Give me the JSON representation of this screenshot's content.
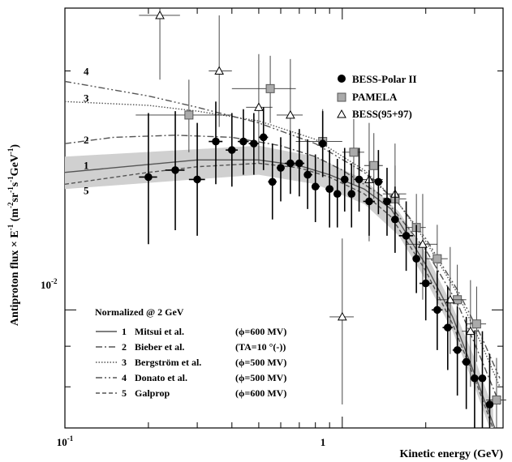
{
  "chart_data": {
    "type": "scatter",
    "title": "",
    "xlabel": "Kinetic energy (GeV)",
    "ylabel": {
      "prefix": "Antiproton flux",
      "times": "×",
      "E": "E",
      "Eexp": "-1",
      "unitOpen": " (m",
      "e1": "-2",
      "sr": "sr",
      "e2": "-1",
      "s": "s",
      "e3": "-1",
      "gev": "GeV",
      "e4": "-1",
      "close": ")"
    },
    "x_scale": "log",
    "y_scale": "log",
    "xlim": [
      0.1,
      3.8
    ],
    "ylim": [
      0.0071,
      0.024
    ],
    "xticks": [
      {
        "value": 0.1,
        "base": "10",
        "exp": "-1"
      },
      {
        "value": 1,
        "base": "1",
        "exp": ""
      }
    ],
    "yticks": [
      {
        "value": 0.01,
        "base": "10",
        "exp": "-2"
      }
    ],
    "legend_position": "top-right",
    "series": [
      {
        "name": "BESS-Polar II",
        "marker": "filled-circle",
        "points": [
          {
            "x": 0.2,
            "y": 0.0147,
            "yl": 0.0121,
            "yh": 0.0177,
            "xl": 0.185,
            "xh": 0.215
          },
          {
            "x": 0.25,
            "y": 0.015,
            "yl": 0.0126,
            "yh": 0.0178,
            "xl": 0.23,
            "xh": 0.27
          },
          {
            "x": 0.3,
            "y": 0.0146,
            "yl": 0.0124,
            "yh": 0.0172,
            "xl": 0.28,
            "xh": 0.32
          },
          {
            "x": 0.35,
            "y": 0.0163,
            "yl": 0.0144,
            "yh": 0.0183,
            "xl": 0.33,
            "xh": 0.37
          },
          {
            "x": 0.4,
            "y": 0.0159,
            "yl": 0.0143,
            "yh": 0.0177,
            "xl": 0.38,
            "xh": 0.42
          },
          {
            "x": 0.44,
            "y": 0.0163,
            "yl": 0.0148,
            "yh": 0.0179,
            "xl": 0.42,
            "xh": 0.46
          },
          {
            "x": 0.48,
            "y": 0.0162,
            "yl": 0.0148,
            "yh": 0.0177,
            "xl": 0.46,
            "xh": 0.5
          },
          {
            "x": 0.52,
            "y": 0.0165,
            "yl": 0.015,
            "yh": 0.018,
            "xl": 0.5,
            "xh": 0.54
          },
          {
            "x": 0.56,
            "y": 0.0145,
            "yl": 0.013,
            "yh": 0.0162,
            "xl": 0.54,
            "xh": 0.58
          },
          {
            "x": 0.6,
            "y": 0.0151,
            "yl": 0.0137,
            "yh": 0.0165,
            "xl": 0.58,
            "xh": 0.62
          },
          {
            "x": 0.65,
            "y": 0.0153,
            "yl": 0.014,
            "yh": 0.0168,
            "xl": 0.62,
            "xh": 0.68
          },
          {
            "x": 0.7,
            "y": 0.0153,
            "yl": 0.0139,
            "yh": 0.0169,
            "xl": 0.68,
            "xh": 0.73
          },
          {
            "x": 0.75,
            "y": 0.0148,
            "yl": 0.0134,
            "yh": 0.0164,
            "xl": 0.73,
            "xh": 0.78
          },
          {
            "x": 0.8,
            "y": 0.0143,
            "yl": 0.0129,
            "yh": 0.0157,
            "xl": 0.78,
            "xh": 0.83
          },
          {
            "x": 0.85,
            "y": 0.0162,
            "yl": 0.0147,
            "yh": 0.0178,
            "xl": 0.83,
            "xh": 0.87
          },
          {
            "x": 0.9,
            "y": 0.0142,
            "yl": 0.0127,
            "yh": 0.0159,
            "xl": 0.87,
            "xh": 0.93
          },
          {
            "x": 0.96,
            "y": 0.014,
            "yl": 0.0127,
            "yh": 0.0155,
            "xl": 0.93,
            "xh": 0.99
          },
          {
            "x": 1.02,
            "y": 0.0146,
            "yl": 0.0133,
            "yh": 0.016,
            "xl": 0.99,
            "xh": 1.05
          },
          {
            "x": 1.08,
            "y": 0.014,
            "yl": 0.0127,
            "yh": 0.0153,
            "xl": 1.05,
            "xh": 1.11
          },
          {
            "x": 1.15,
            "y": 0.0146,
            "yl": 0.0133,
            "yh": 0.016,
            "xl": 1.11,
            "xh": 1.19
          },
          {
            "x": 1.25,
            "y": 0.0137,
            "yl": 0.0124,
            "yh": 0.015,
            "xl": 1.19,
            "xh": 1.31
          },
          {
            "x": 1.35,
            "y": 0.0145,
            "yl": 0.0132,
            "yh": 0.0159,
            "xl": 1.31,
            "xh": 1.4
          },
          {
            "x": 1.45,
            "y": 0.0137,
            "yl": 0.0124,
            "yh": 0.0151,
            "xl": 1.4,
            "xh": 1.5
          },
          {
            "x": 1.55,
            "y": 0.013,
            "yl": 0.0118,
            "yh": 0.0143,
            "xl": 1.5,
            "xh": 1.6
          },
          {
            "x": 1.7,
            "y": 0.0124,
            "yl": 0.0112,
            "yh": 0.0137,
            "xl": 1.6,
            "xh": 1.8
          },
          {
            "x": 1.85,
            "y": 0.0116,
            "yl": 0.0105,
            "yh": 0.0128,
            "xl": 1.8,
            "xh": 1.9
          },
          {
            "x": 2.0,
            "y": 0.0108,
            "yl": 0.0097,
            "yh": 0.012,
            "xl": 1.9,
            "xh": 2.1
          },
          {
            "x": 2.2,
            "y": 0.01,
            "yl": 0.0089,
            "yh": 0.0112,
            "xl": 2.1,
            "xh": 2.3
          },
          {
            "x": 2.4,
            "y": 0.0095,
            "yl": 0.0084,
            "yh": 0.0107,
            "xl": 2.3,
            "xh": 2.5
          },
          {
            "x": 2.6,
            "y": 0.0089,
            "yl": 0.0078,
            "yh": 0.0101,
            "xl": 2.5,
            "xh": 2.7
          },
          {
            "x": 2.8,
            "y": 0.0086,
            "yl": 0.0075,
            "yh": 0.0098,
            "xl": 2.7,
            "xh": 2.9
          },
          {
            "x": 3.0,
            "y": 0.0082,
            "yl": 0.0071,
            "yh": 0.0094,
            "xl": 2.9,
            "xh": 3.1
          },
          {
            "x": 3.2,
            "y": 0.0082,
            "yl": 0.0071,
            "yh": 0.0094,
            "xl": 3.1,
            "xh": 3.3
          },
          {
            "x": 3.4,
            "y": 0.0076,
            "yl": 0.0065,
            "yh": 0.0088,
            "xl": 3.3,
            "xh": 3.5
          }
        ]
      },
      {
        "name": "PAMELA",
        "marker": "open-square",
        "points": [
          {
            "x": 0.28,
            "y": 0.0176,
            "yl": 0.0158,
            "yh": 0.0195,
            "xl": 0.18,
            "xh": 0.4
          },
          {
            "x": 0.55,
            "y": 0.019,
            "yl": 0.0172,
            "yh": 0.0209,
            "xl": 0.4,
            "xh": 0.68
          },
          {
            "x": 0.85,
            "y": 0.0163,
            "yl": 0.0148,
            "yh": 0.0179,
            "xl": 0.68,
            "xh": 1.0
          },
          {
            "x": 1.1,
            "y": 0.0158,
            "yl": 0.0144,
            "yh": 0.0174,
            "xl": 1.0,
            "xh": 1.2
          },
          {
            "x": 1.3,
            "y": 0.0152,
            "yl": 0.0138,
            "yh": 0.0167,
            "xl": 1.2,
            "xh": 1.4
          },
          {
            "x": 1.55,
            "y": 0.0138,
            "yl": 0.0125,
            "yh": 0.0152,
            "xl": 1.4,
            "xh": 1.7
          },
          {
            "x": 1.85,
            "y": 0.0127,
            "yl": 0.0115,
            "yh": 0.014,
            "xl": 1.7,
            "xh": 2.0
          },
          {
            "x": 2.2,
            "y": 0.0116,
            "yl": 0.0105,
            "yh": 0.0128,
            "xl": 2.0,
            "xh": 2.4
          },
          {
            "x": 2.6,
            "y": 0.0103,
            "yl": 0.0093,
            "yh": 0.0114,
            "xl": 2.4,
            "xh": 2.8
          },
          {
            "x": 3.05,
            "y": 0.0096,
            "yl": 0.0086,
            "yh": 0.0107,
            "xl": 2.8,
            "xh": 3.3
          },
          {
            "x": 3.6,
            "y": 0.0077,
            "yl": 0.0068,
            "yh": 0.0087,
            "xl": 3.3,
            "xh": 3.9
          }
        ]
      },
      {
        "name": "BESS(95+97)",
        "marker": "open-triangle",
        "points": [
          {
            "x": 0.22,
            "y": 0.0235,
            "yl": 0.0195,
            "yh": 0.028,
            "xl": 0.185,
            "xh": 0.26
          },
          {
            "x": 0.36,
            "y": 0.02,
            "yl": 0.017,
            "yh": 0.0235,
            "xl": 0.33,
            "xh": 0.4
          },
          {
            "x": 0.5,
            "y": 0.018,
            "yl": 0.0153,
            "yh": 0.021,
            "xl": 0.45,
            "xh": 0.56
          },
          {
            "x": 0.65,
            "y": 0.0176,
            "yl": 0.0148,
            "yh": 0.0207,
            "xl": 0.58,
            "xh": 0.72
          },
          {
            "x": 1.0,
            "y": 0.0098,
            "yl": 0.0076,
            "yh": 0.0123,
            "xl": 0.9,
            "xh": 1.1
          },
          {
            "x": 1.25,
            "y": 0.0146,
            "yl": 0.0122,
            "yh": 0.0172,
            "xl": 1.1,
            "xh": 1.4
          },
          {
            "x": 1.55,
            "y": 0.014,
            "yl": 0.0119,
            "yh": 0.0162,
            "xl": 1.4,
            "xh": 1.7
          },
          {
            "x": 1.95,
            "y": 0.0121,
            "yl": 0.0103,
            "yh": 0.014,
            "xl": 1.7,
            "xh": 2.2
          },
          {
            "x": 2.45,
            "y": 0.0103,
            "yl": 0.0088,
            "yh": 0.012,
            "xl": 2.2,
            "xh": 2.7
          },
          {
            "x": 2.9,
            "y": 0.0094,
            "yl": 0.008,
            "yh": 0.0109,
            "xl": 2.7,
            "xh": 3.1
          }
        ]
      }
    ],
    "models": [
      {
        "name": "1",
        "style": "solid",
        "color": "#555555",
        "band": {
          "x": [
            0.1,
            0.5,
            0.8,
            1.2,
            1.6,
            2.0,
            2.5,
            3.0,
            3.5
          ],
          "lo": [
            0.0142,
            0.0148,
            0.0144,
            0.0136,
            0.0124,
            0.0109,
            0.0094,
            0.008,
            0.0069
          ],
          "hi": [
            0.0156,
            0.0161,
            0.0156,
            0.0146,
            0.0133,
            0.0118,
            0.0101,
            0.0087,
            0.0075
          ]
        },
        "x": [
          0.1,
          0.2,
          0.3,
          0.5,
          0.7,
          0.9,
          1.2,
          1.5,
          2.0,
          2.5,
          3.0,
          3.6
        ],
        "y": [
          0.0149,
          0.01525,
          0.01545,
          0.01545,
          0.0152,
          0.0148,
          0.0142,
          0.0134,
          0.0114,
          0.0098,
          0.0083,
          0.007
        ]
      },
      {
        "name": "2",
        "style": "dashdot",
        "color": "#555555",
        "x": [
          0.1,
          0.15,
          0.25,
          0.4,
          0.6,
          0.8,
          1.0,
          1.4,
          2.0,
          2.6,
          3.2,
          3.7
        ],
        "y": [
          0.0162,
          0.0165,
          0.0166,
          0.0165,
          0.0161,
          0.0156,
          0.015,
          0.0139,
          0.0119,
          0.0102,
          0.0086,
          0.0076
        ]
      },
      {
        "name": "3",
        "style": "dotted",
        "color": "#555555",
        "x": [
          0.1,
          0.2,
          0.3,
          0.5,
          0.8,
          1.2,
          1.6,
          2.0,
          2.6,
          3.2,
          3.7
        ],
        "y": [
          0.0183,
          0.0181,
          0.0178,
          0.0173,
          0.0164,
          0.015,
          0.0136,
          0.0122,
          0.0105,
          0.009,
          0.008
        ]
      },
      {
        "name": "4",
        "style": "dashdotdot",
        "color": "#555555",
        "x": [
          0.1,
          0.2,
          0.3,
          0.5,
          0.8,
          1.2,
          1.6,
          2.0,
          2.6,
          3.2,
          3.7
        ],
        "y": [
          0.0194,
          0.0186,
          0.018,
          0.0172,
          0.0162,
          0.0149,
          0.0136,
          0.0123,
          0.0106,
          0.0092,
          0.0082
        ]
      },
      {
        "name": "5",
        "style": "dashed",
        "color": "#555555",
        "x": [
          0.1,
          0.2,
          0.3,
          0.5,
          0.7,
          0.9,
          1.2,
          1.5,
          2.0,
          2.5,
          3.0,
          3.6
        ],
        "y": [
          0.0144,
          0.0149,
          0.01515,
          0.0153,
          0.0151,
          0.0147,
          0.014,
          0.0131,
          0.0112,
          0.0096,
          0.0082,
          0.0069
        ]
      }
    ],
    "legend": {
      "entries": [
        "BESS-Polar II",
        "PAMELA",
        "BESS(95+97)"
      ]
    },
    "annotations": {
      "normalized": "Normalized @ 2 GeV",
      "model_rows": [
        {
          "num": "1",
          "name": "Mitsui et al.",
          "param": "(ϕ=600 MV)"
        },
        {
          "num": "2",
          "name": "Bieber et al.",
          "param": "(TA=10 °(-))"
        },
        {
          "num": "3",
          "name": "Bergström et al.",
          "param": "(ϕ=500 MV)"
        },
        {
          "num": "4",
          "name": "Donato et al.",
          "param": "(ϕ=500 MV)"
        },
        {
          "num": "5",
          "name": "Galprop",
          "param": "(ϕ=600 MV)"
        }
      ]
    }
  }
}
